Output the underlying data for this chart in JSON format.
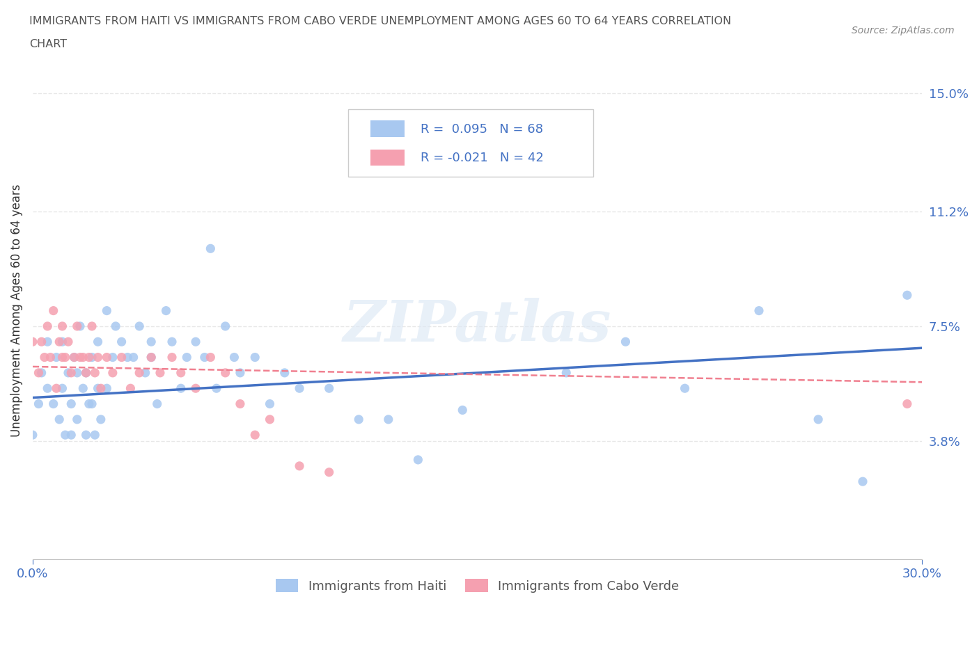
{
  "title_line1": "IMMIGRANTS FROM HAITI VS IMMIGRANTS FROM CABO VERDE UNEMPLOYMENT AMONG AGES 60 TO 64 YEARS CORRELATION",
  "title_line2": "CHART",
  "source": "Source: ZipAtlas.com",
  "ylabel": "Unemployment Among Ages 60 to 64 years",
  "xmin": 0.0,
  "xmax": 0.3,
  "ymin": 0.0,
  "ymax": 0.16,
  "yticks": [
    0.0,
    0.038,
    0.075,
    0.112,
    0.15
  ],
  "ytick_labels": [
    "",
    "3.8%",
    "7.5%",
    "11.2%",
    "15.0%"
  ],
  "xticks": [
    0.0,
    0.3
  ],
  "xtick_labels": [
    "0.0%",
    "30.0%"
  ],
  "haiti_R": 0.095,
  "haiti_N": 68,
  "caboverde_R": -0.021,
  "caboverde_N": 42,
  "haiti_color": "#a8c8f0",
  "caboverde_color": "#f5a0b0",
  "haiti_line_color": "#4472c4",
  "caboverde_line_color": "#f08090",
  "legend_text_color": "#4472c4",
  "title_color": "#555555",
  "axis_color": "#4472c4",
  "grid_color": "#e8e8e8",
  "haiti_scatter_x": [
    0.0,
    0.002,
    0.003,
    0.005,
    0.005,
    0.007,
    0.008,
    0.009,
    0.01,
    0.01,
    0.011,
    0.012,
    0.013,
    0.013,
    0.014,
    0.015,
    0.015,
    0.016,
    0.017,
    0.018,
    0.018,
    0.019,
    0.02,
    0.02,
    0.021,
    0.022,
    0.022,
    0.023,
    0.025,
    0.025,
    0.027,
    0.028,
    0.03,
    0.032,
    0.034,
    0.036,
    0.038,
    0.04,
    0.04,
    0.042,
    0.045,
    0.047,
    0.05,
    0.052,
    0.055,
    0.058,
    0.06,
    0.062,
    0.065,
    0.068,
    0.07,
    0.075,
    0.08,
    0.085,
    0.09,
    0.1,
    0.11,
    0.12,
    0.13,
    0.145,
    0.16,
    0.18,
    0.2,
    0.22,
    0.245,
    0.265,
    0.28,
    0.295
  ],
  "haiti_scatter_y": [
    0.04,
    0.05,
    0.06,
    0.055,
    0.07,
    0.05,
    0.065,
    0.045,
    0.055,
    0.07,
    0.04,
    0.06,
    0.05,
    0.04,
    0.065,
    0.06,
    0.045,
    0.075,
    0.055,
    0.06,
    0.04,
    0.05,
    0.065,
    0.05,
    0.04,
    0.07,
    0.055,
    0.045,
    0.08,
    0.055,
    0.065,
    0.075,
    0.07,
    0.065,
    0.065,
    0.075,
    0.06,
    0.065,
    0.07,
    0.05,
    0.08,
    0.07,
    0.055,
    0.065,
    0.07,
    0.065,
    0.1,
    0.055,
    0.075,
    0.065,
    0.06,
    0.065,
    0.05,
    0.06,
    0.055,
    0.055,
    0.045,
    0.045,
    0.032,
    0.048,
    0.14,
    0.06,
    0.07,
    0.055,
    0.08,
    0.045,
    0.025,
    0.085
  ],
  "caboverde_scatter_x": [
    0.0,
    0.002,
    0.003,
    0.004,
    0.005,
    0.006,
    0.007,
    0.008,
    0.009,
    0.01,
    0.01,
    0.011,
    0.012,
    0.013,
    0.014,
    0.015,
    0.016,
    0.017,
    0.018,
    0.019,
    0.02,
    0.021,
    0.022,
    0.023,
    0.025,
    0.027,
    0.03,
    0.033,
    0.036,
    0.04,
    0.043,
    0.047,
    0.05,
    0.055,
    0.06,
    0.065,
    0.07,
    0.075,
    0.08,
    0.09,
    0.1,
    0.295
  ],
  "caboverde_scatter_y": [
    0.07,
    0.06,
    0.07,
    0.065,
    0.075,
    0.065,
    0.08,
    0.055,
    0.07,
    0.065,
    0.075,
    0.065,
    0.07,
    0.06,
    0.065,
    0.075,
    0.065,
    0.065,
    0.06,
    0.065,
    0.075,
    0.06,
    0.065,
    0.055,
    0.065,
    0.06,
    0.065,
    0.055,
    0.06,
    0.065,
    0.06,
    0.065,
    0.06,
    0.055,
    0.065,
    0.06,
    0.05,
    0.04,
    0.045,
    0.03,
    0.028,
    0.05
  ],
  "watermark": "ZIPatlas"
}
